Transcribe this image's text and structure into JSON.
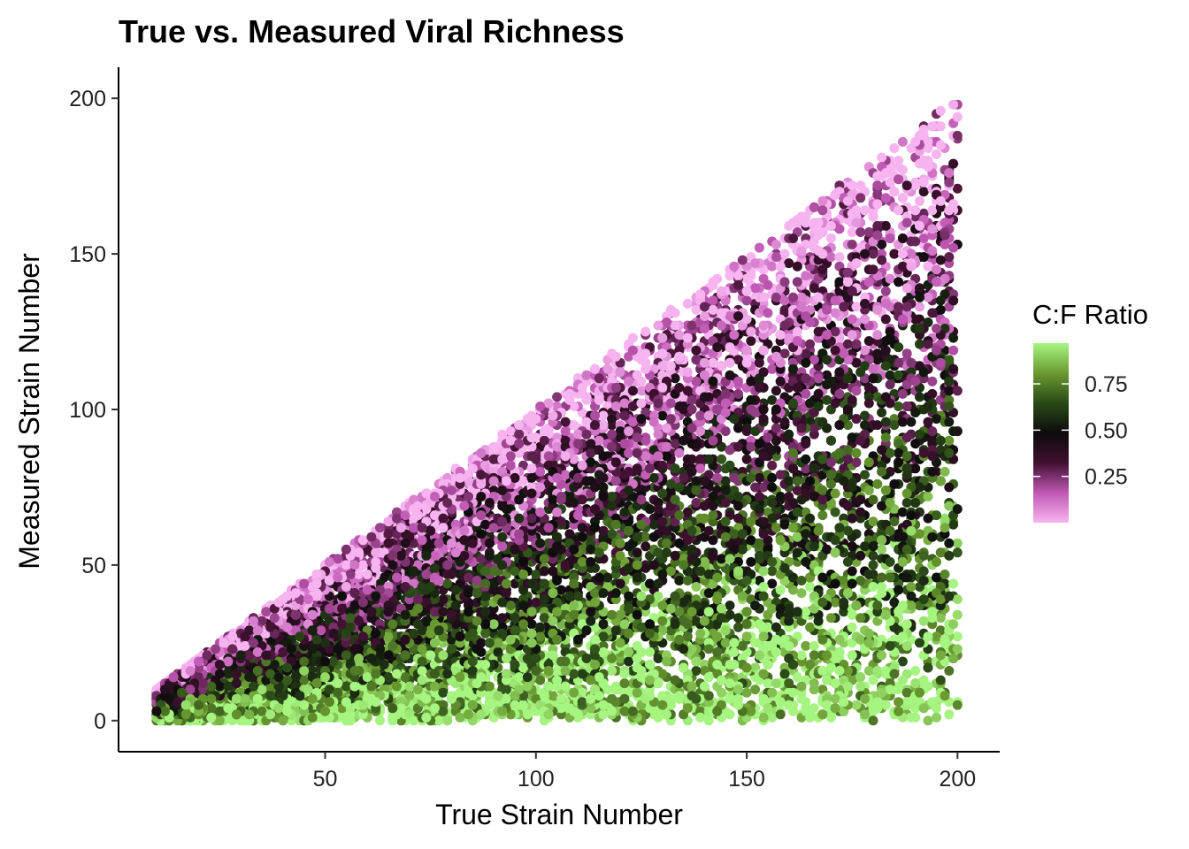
{
  "chart_data": {
    "type": "scatter",
    "title": "True vs. Measured Viral Richness",
    "xlabel": "True Strain Number",
    "ylabel": "Measured Strain Number",
    "xlim": [
      1,
      210
    ],
    "ylim": [
      -10,
      210
    ],
    "x_ticks": [
      50,
      100,
      150,
      200
    ],
    "y_ticks": [
      0,
      50,
      100,
      150,
      200
    ],
    "x_range": [
      10,
      200
    ],
    "grid": false,
    "point_count": 9000,
    "color_scale": {
      "title": "C:F Ratio",
      "ticks": [
        0.25,
        0.5,
        0.75
      ],
      "tick_labels": [
        "0.25",
        "0.50",
        "0.75"
      ],
      "range": [
        0,
        0.97
      ],
      "colors": [
        "#f7b4f0",
        "#c058b4",
        "#401030",
        "#0c0c0c",
        "#2a4a18",
        "#6a9a30",
        "#a6f580"
      ]
    },
    "legend_position": "right"
  }
}
